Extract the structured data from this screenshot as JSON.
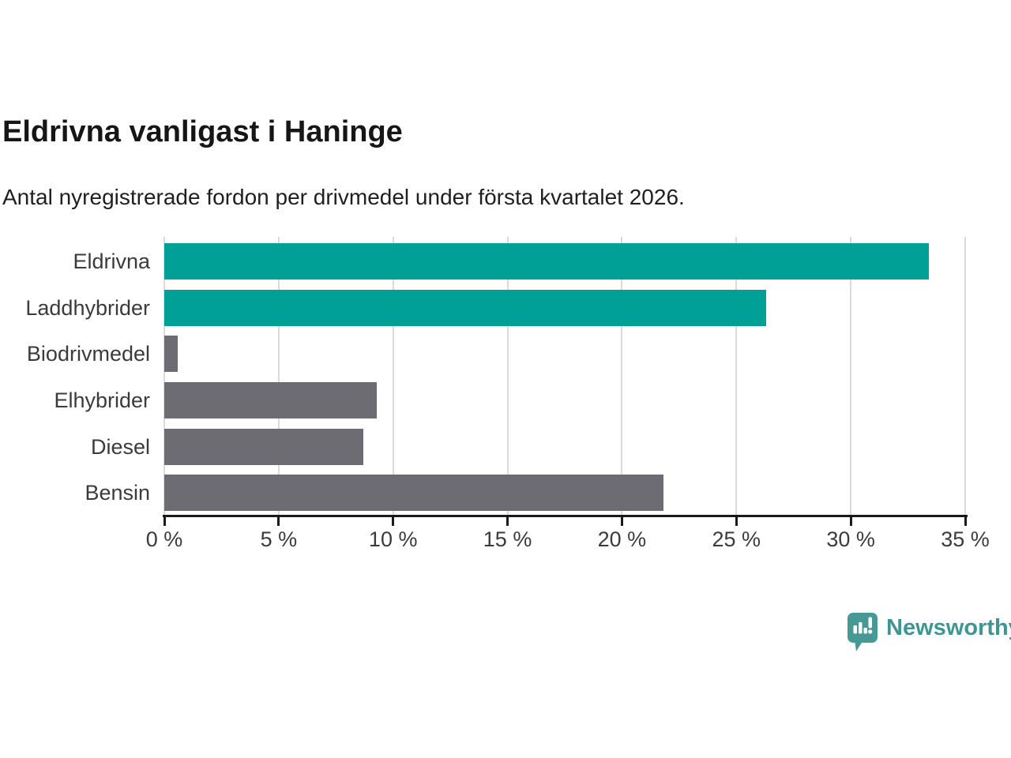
{
  "header": {
    "title": "Eldrivna vanligast i Haninge",
    "subtitle": "Antal nyregistrerade fordon per drivmedel under första kvartalet 2026."
  },
  "chart_data": {
    "type": "bar",
    "orientation": "horizontal",
    "title": "Eldrivna vanligast i Haninge",
    "subtitle": "Antal nyregistrerade fordon per drivmedel under första kvartalet 2026.",
    "categories": [
      "Eldrivna",
      "Laddhybrider",
      "Biodrivmedel",
      "Elhybrider",
      "Diesel",
      "Bensin"
    ],
    "values": [
      33.4,
      26.3,
      0.6,
      9.3,
      8.7,
      21.8
    ],
    "unit": "%",
    "xlim": [
      0,
      35
    ],
    "x_tick_step": 5,
    "x_tick_labels": [
      "0 %",
      "5 %",
      "10 %",
      "15 %",
      "20 %",
      "25 %",
      "30 %",
      "35 %"
    ],
    "grid": true,
    "legend": false,
    "bar_colors": [
      "#00a096",
      "#00a096",
      "#6e6c73",
      "#6e6c73",
      "#6e6c73",
      "#6e6c73"
    ],
    "highlight_color": "#00a096",
    "default_color": "#6e6c73"
  },
  "footer": {
    "brand": "Newsworthy",
    "logo_icon": "newsworthy-speech-bubble-barchart-icon",
    "brand_color": "#3e9692",
    "logo_color": "#479996"
  }
}
